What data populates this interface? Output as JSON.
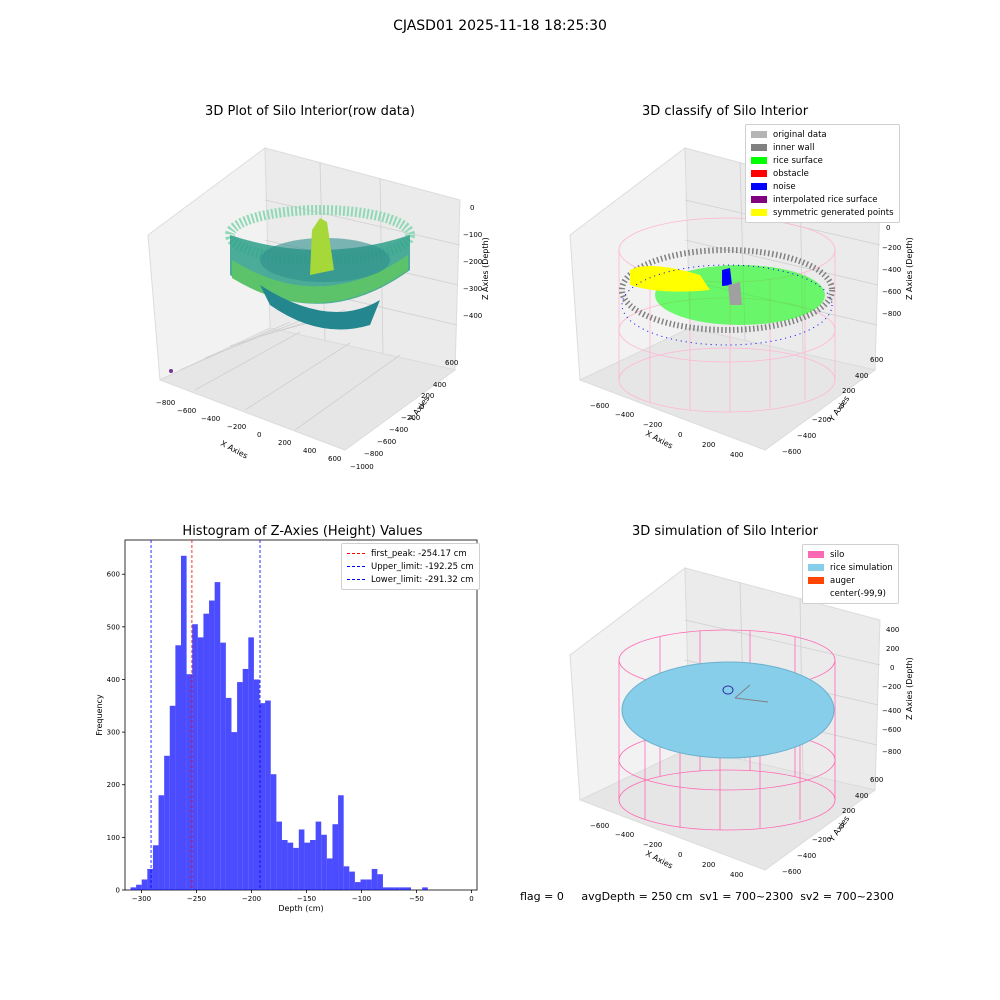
{
  "title": "CJASD01 2025-11-18 18:25:30",
  "footer": {
    "text": "flag = 0     avgDepth = 250 cm  sv1 = 700~2300  sv2 = 700~2300"
  },
  "panels": {
    "raw": {
      "title": "3D Plot of Silo Interior(row data)",
      "xlabel": "X Axies",
      "ylabel": "Y Axies",
      "zlabel": "Z Axies (Depth)",
      "xticks": [
        "−800",
        "−600",
        "−400",
        "−200",
        "0",
        "200",
        "400",
        "600"
      ],
      "yticks": [
        "600",
        "400",
        "200",
        "0",
        "−200",
        "−400",
        "−600",
        "−800",
        "−1000"
      ],
      "zticks": [
        "0",
        "−100",
        "−200",
        "−300",
        "−400"
      ]
    },
    "classify": {
      "title": "3D classify of Silo Interior",
      "xlabel": "X Axies",
      "ylabel": "Y Axies",
      "zlabel": "Z Axies (Depth)",
      "xticks": [
        "−600",
        "−400",
        "−200",
        "0",
        "200",
        "400"
      ],
      "yticks": [
        "600",
        "400",
        "200",
        "0",
        "−200",
        "−400",
        "−600"
      ],
      "zticks": [
        "200",
        "0",
        "−200",
        "−400",
        "−600",
        "−800"
      ],
      "legend": [
        {
          "label": "original data",
          "color": "#b4b4b4"
        },
        {
          "label": "inner wall",
          "color": "#808080"
        },
        {
          "label": "rice surface",
          "color": "#00ff00"
        },
        {
          "label": "obstacle",
          "color": "#ff0000"
        },
        {
          "label": "noise",
          "color": "#0000ff"
        },
        {
          "label": "interpolated rice surface",
          "color": "#800080"
        },
        {
          "label": "symmetric generated points",
          "color": "#ffff00"
        }
      ]
    },
    "simulation": {
      "title": "3D simulation of Silo Interior",
      "xlabel": "X Axies",
      "ylabel": "Y Axies",
      "zlabel": "Z Axies (Depth)",
      "xticks": [
        "−600",
        "−400",
        "−200",
        "0",
        "200",
        "400"
      ],
      "yticks": [
        "600",
        "400",
        "200",
        "0",
        "−200",
        "−400",
        "−600"
      ],
      "zticks": [
        "400",
        "200",
        "0",
        "−200",
        "−400",
        "−600",
        "−800"
      ],
      "legend": [
        {
          "label": "silo",
          "color": "#ff69b4"
        },
        {
          "label": "rice simulation",
          "color": "#87ceeb"
        },
        {
          "label": "auger",
          "color": "#ff4500"
        },
        {
          "label": "center(-99,9)",
          "color": ""
        }
      ]
    }
  },
  "chart_data": {
    "type": "bar",
    "title": "Histogram of Z-Axies (Height) Values",
    "xlabel": "Depth (cm)",
    "ylabel": "Frequency",
    "xlim": [
      -315,
      5
    ],
    "ylim": [
      0,
      665
    ],
    "xticks": [
      -300,
      -250,
      -200,
      -150,
      -100,
      -50,
      0
    ],
    "yticks": [
      0,
      100,
      200,
      300,
      400,
      500,
      600
    ],
    "bar_color": "#0000ff",
    "bar_opacity": 0.7,
    "bin_width": 5.1,
    "bin_edges_start": -310,
    "values": [
      5,
      10,
      20,
      40,
      85,
      180,
      255,
      350,
      465,
      635,
      410,
      505,
      480,
      525,
      550,
      585,
      470,
      365,
      300,
      395,
      420,
      480,
      400,
      355,
      360,
      220,
      130,
      95,
      90,
      80,
      115,
      90,
      95,
      130,
      105,
      60,
      125,
      180,
      45,
      35,
      15,
      20,
      20,
      40,
      30,
      5,
      5,
      5,
      5,
      5,
      0,
      0,
      5
    ],
    "vlines": [
      {
        "label": "first_peak: -254.17 cm",
        "x": -254.17,
        "color": "#ff0000"
      },
      {
        "label": "Upper_limit: -192.25 cm",
        "x": -192.25,
        "color": "#0000ff"
      },
      {
        "label": "Lower_limit: -291.32 cm",
        "x": -291.32,
        "color": "#0000ff"
      }
    ],
    "legend_position": "top-right"
  }
}
